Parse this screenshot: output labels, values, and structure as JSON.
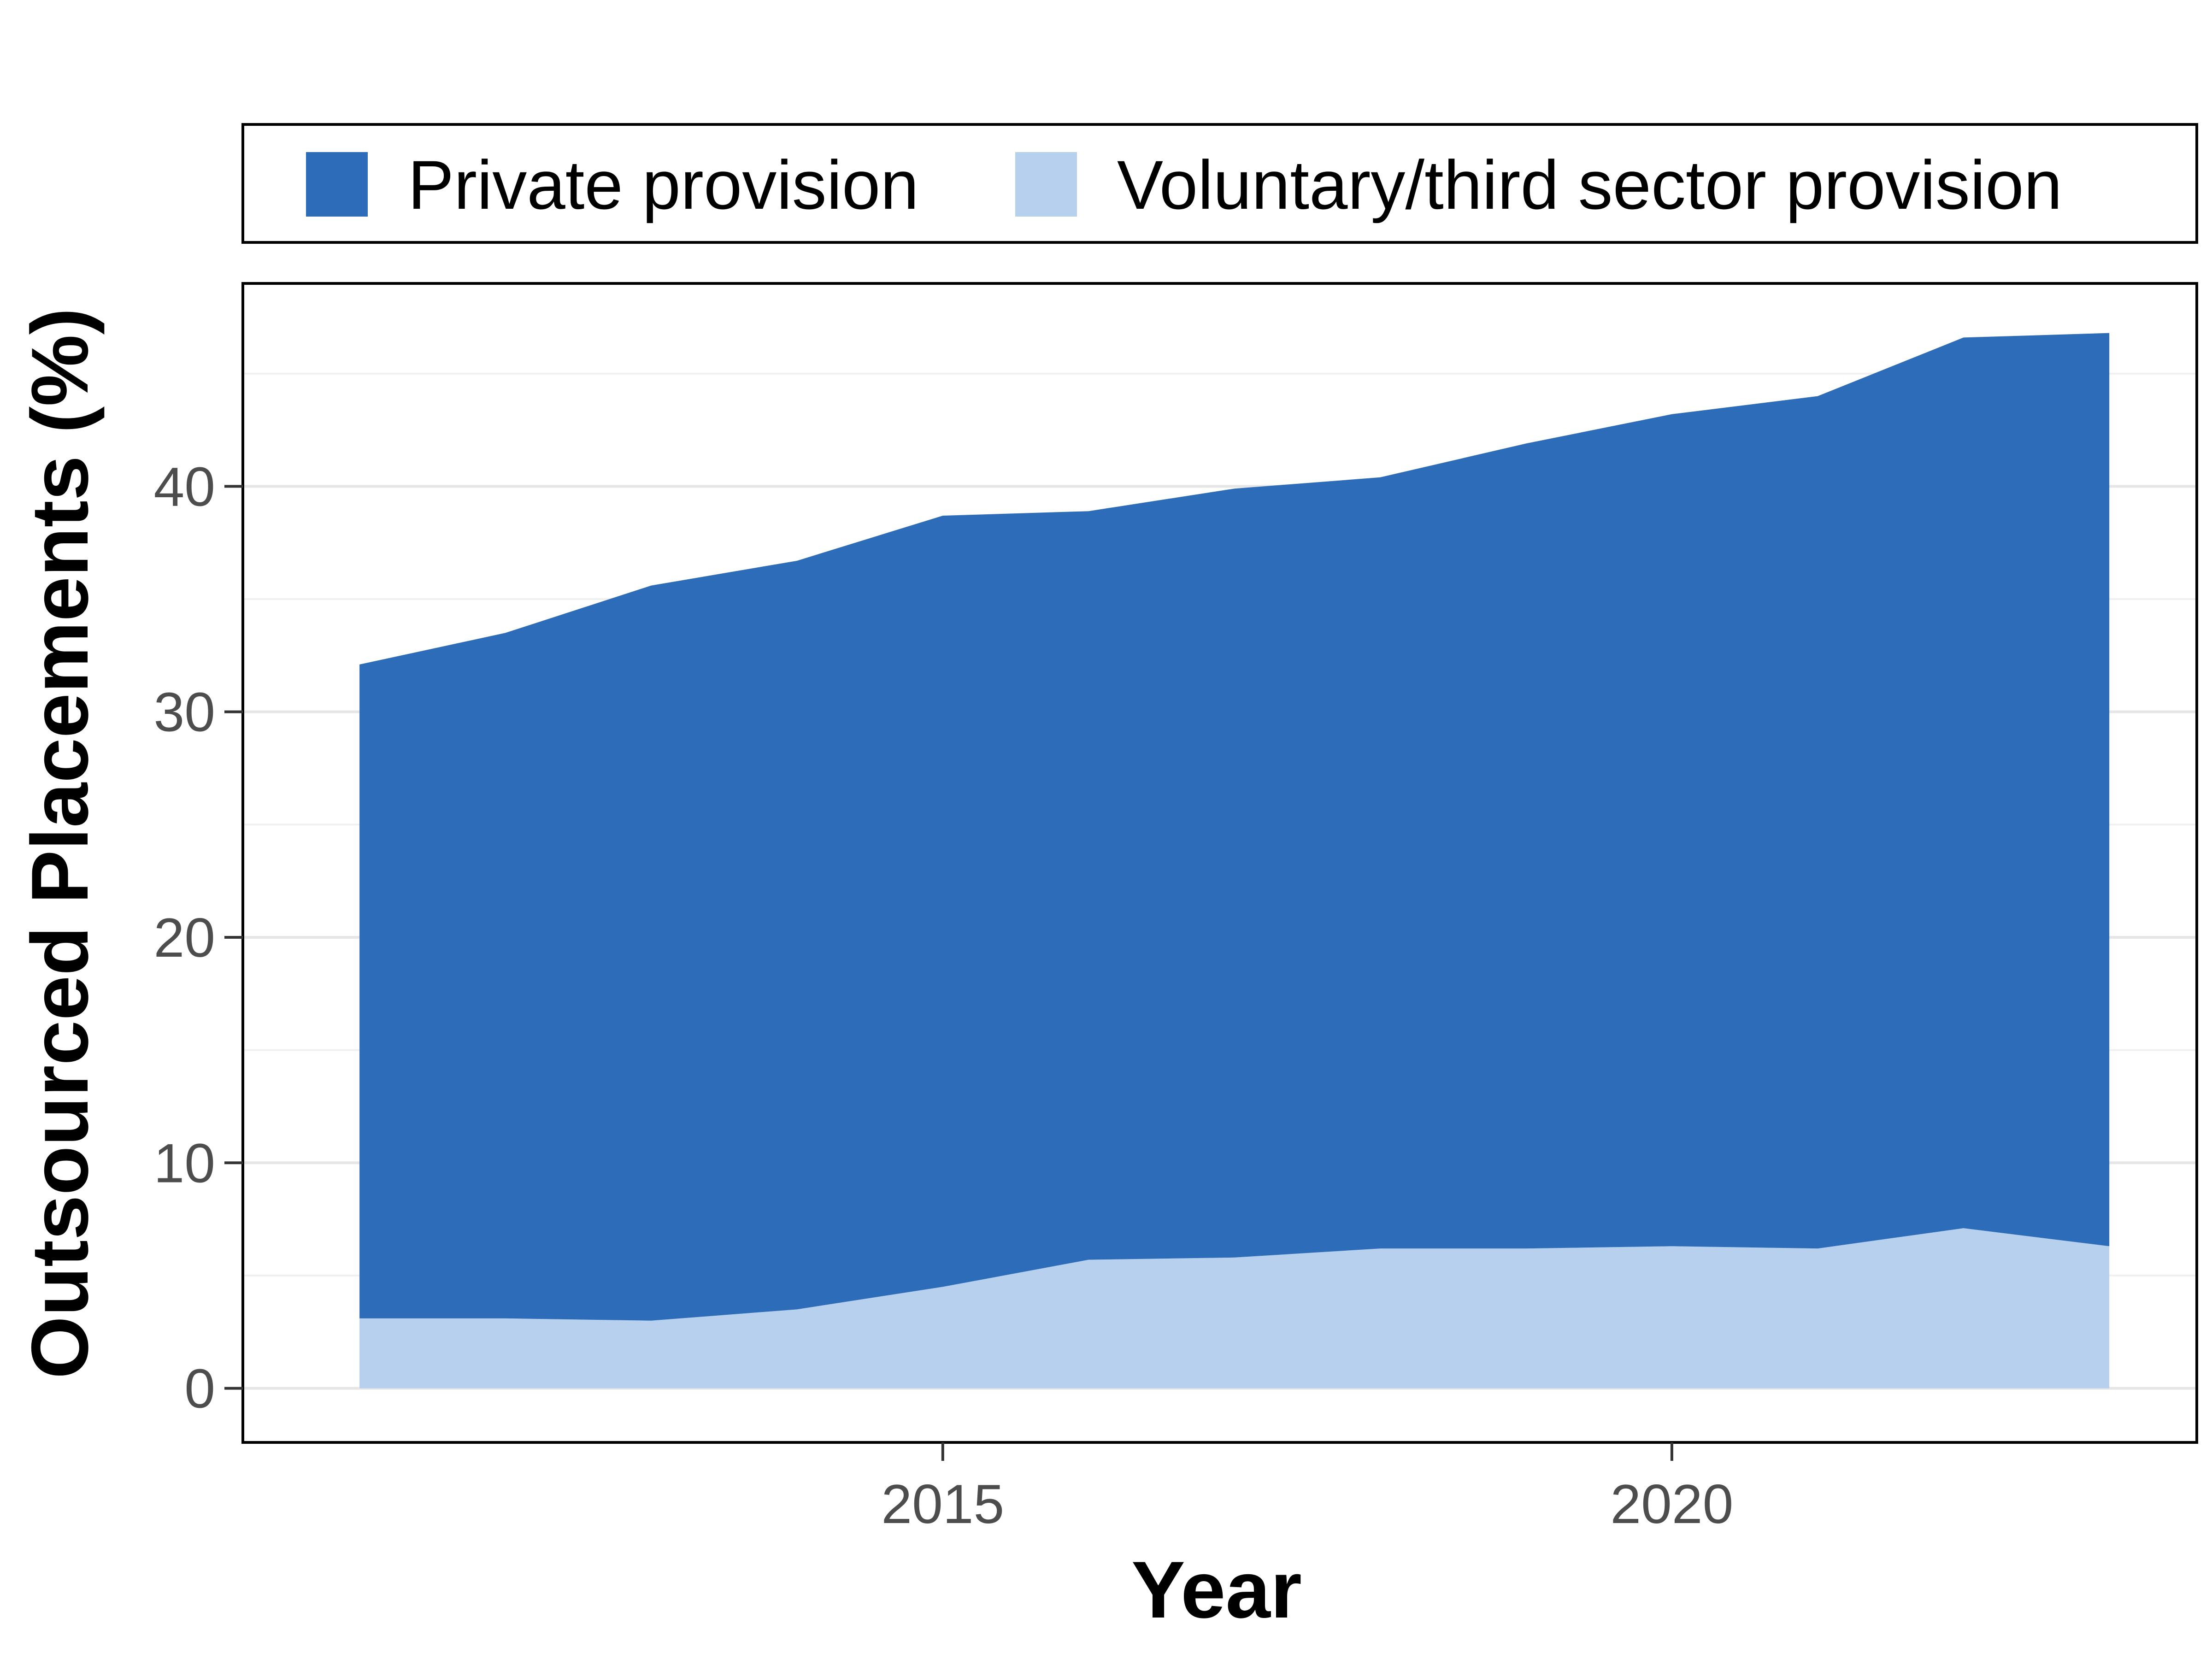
{
  "chart_data": {
    "type": "area",
    "stacked": true,
    "title": "",
    "xlabel": "Year",
    "ylabel": "Outsourced Placements (%)",
    "x": [
      2011,
      2012,
      2013,
      2014,
      2015,
      2016,
      2017,
      2018,
      2019,
      2020,
      2021,
      2022,
      2023
    ],
    "xlim": [
      2010.2,
      2023.6
    ],
    "ylim": [
      -2.4,
      49
    ],
    "x_ticks": [
      2015,
      2020
    ],
    "x_tick_labels": [
      "2015",
      "2020"
    ],
    "y_ticks": [
      0,
      10,
      20,
      30,
      40
    ],
    "y_tick_labels": [
      "0",
      "10",
      "20",
      "30",
      "40"
    ],
    "grid": true,
    "legend_position": "top",
    "series": [
      {
        "name": "Voluntary/third sector provision",
        "color": "#b6d0ee",
        "values": [
          3.1,
          3.1,
          3.0,
          3.5,
          4.5,
          5.7,
          5.8,
          6.2,
          6.2,
          6.3,
          6.2,
          7.1,
          6.3
        ]
      },
      {
        "name": "Private provision",
        "color": "#2c6cb9",
        "values": [
          29.0,
          30.4,
          32.6,
          33.2,
          34.2,
          33.2,
          34.1,
          34.2,
          35.7,
          36.9,
          37.8,
          39.5,
          40.5
        ]
      }
    ],
    "legend": [
      {
        "label": "Private provision",
        "color": "#2c6cb9"
      },
      {
        "label": "Voluntary/third sector provision",
        "color": "#b6d0ee"
      }
    ]
  }
}
